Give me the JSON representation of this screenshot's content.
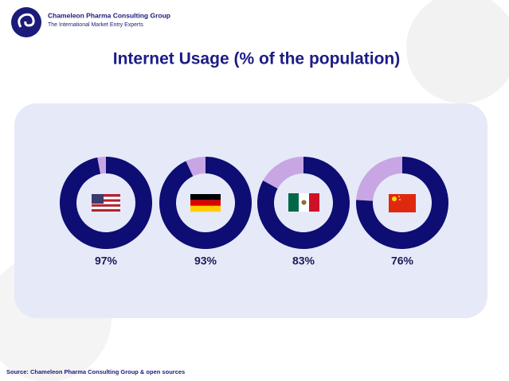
{
  "header": {
    "company": "Chameleon Pharma Consulting Group",
    "tagline": "The International Market Entry Experts"
  },
  "chart_data": {
    "type": "donut",
    "title": "Internet Usage (% of the population)",
    "values": [
      97,
      93,
      83,
      76
    ],
    "value_labels": [
      "97%",
      "93%",
      "83%",
      "76%"
    ],
    "range": [
      0,
      100
    ],
    "color": "#0d0d73",
    "rest_color": "#c8a6e4"
  },
  "footer": {
    "source": "Source: Chameleon Pharma Consulting Group & open sources"
  }
}
